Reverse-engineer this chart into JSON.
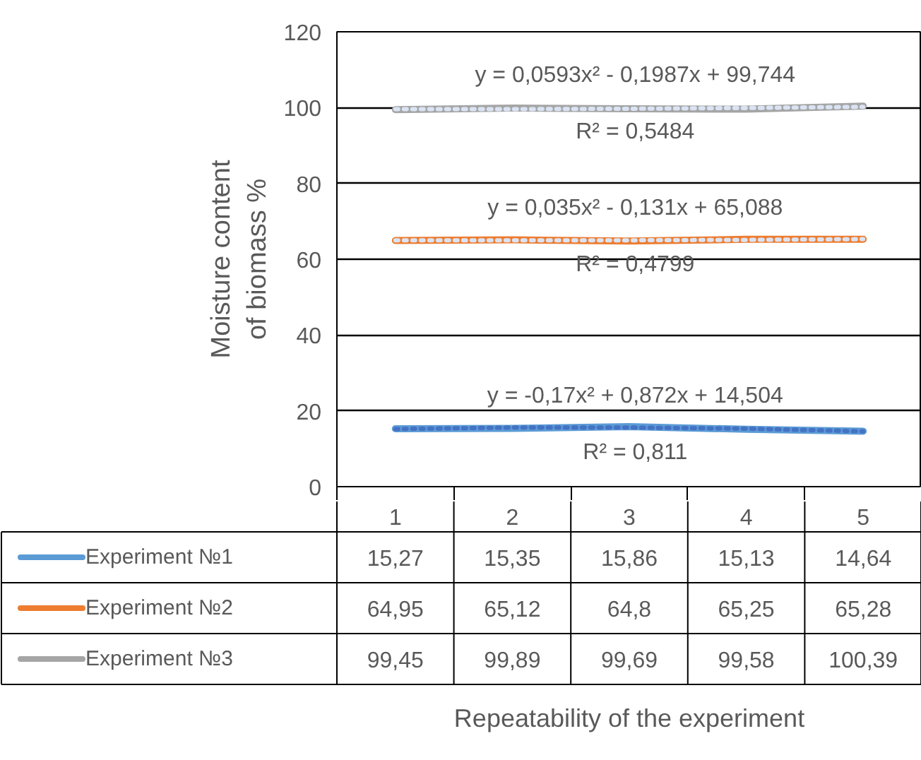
{
  "chart_data": {
    "type": "line",
    "ylabel": "Moisture content\nof biomass %",
    "categories": [
      "1",
      "2",
      "3",
      "4",
      "5"
    ],
    "series": [
      {
        "name": "Experiment №1",
        "color": "#5b9bd5",
        "values": [
          15.27,
          15.35,
          15.86,
          15.13,
          14.64
        ],
        "value_labels": [
          "15,27",
          "15,35",
          "15,86",
          "15,13",
          "14,64"
        ]
      },
      {
        "name": "Experiment №2",
        "color": "#ed7d31",
        "values": [
          64.95,
          65.12,
          64.8,
          65.25,
          65.28
        ],
        "value_labels": [
          "64,95",
          "65,12",
          "64,8",
          "65,25",
          "65,28"
        ]
      },
      {
        "name": "Experiment №3",
        "color": "#a5a5a5",
        "values": [
          99.45,
          99.89,
          99.69,
          99.58,
          100.39
        ],
        "value_labels": [
          "99,45",
          "99,89",
          "99,69",
          "99,58",
          "100,39"
        ]
      },
      {
        "type": "line",
        "line_style": "dotted",
        "color": "#4472c4",
        "x": [
          "1",
          "2",
          "3",
          "4",
          "5"
        ],
        "values": [
          15.2,
          15.6,
          15.6,
          15.3,
          14.6
        ]
      },
      {
        "type": "line",
        "line_style": "dotted",
        "color": "#dae3f3",
        "x": [
          "1",
          "2",
          "3",
          "4",
          "5"
        ],
        "values": [
          65.0,
          65.0,
          65.0,
          65.1,
          65.3
        ]
      },
      {
        "type": "line",
        "line_style": "dotted",
        "color": "#dae3f3",
        "x": [
          "1",
          "2",
          "3",
          "4",
          "5"
        ],
        "values": [
          99.6,
          99.6,
          99.7,
          99.9,
          100.2
        ]
      }
    ],
    "annotations": [
      "y = -0,17x² + 0,872x + 14,504",
      "R² = 0,811",
      "y = 0,035x² - 0,131x + 65,088",
      "R² = 0,4799",
      "y = 0,0593x² - 0,1987x + 99,744",
      "R² = 0,5484",
      "Repeatability of the experiment"
    ],
    "ylim": [
      0,
      120
    ],
    "yticks": [
      0,
      20,
      40,
      60,
      80,
      100,
      120
    ],
    "grid": "y",
    "legend": "bottom",
    "marker": "none",
    "line_style": "solid"
  }
}
